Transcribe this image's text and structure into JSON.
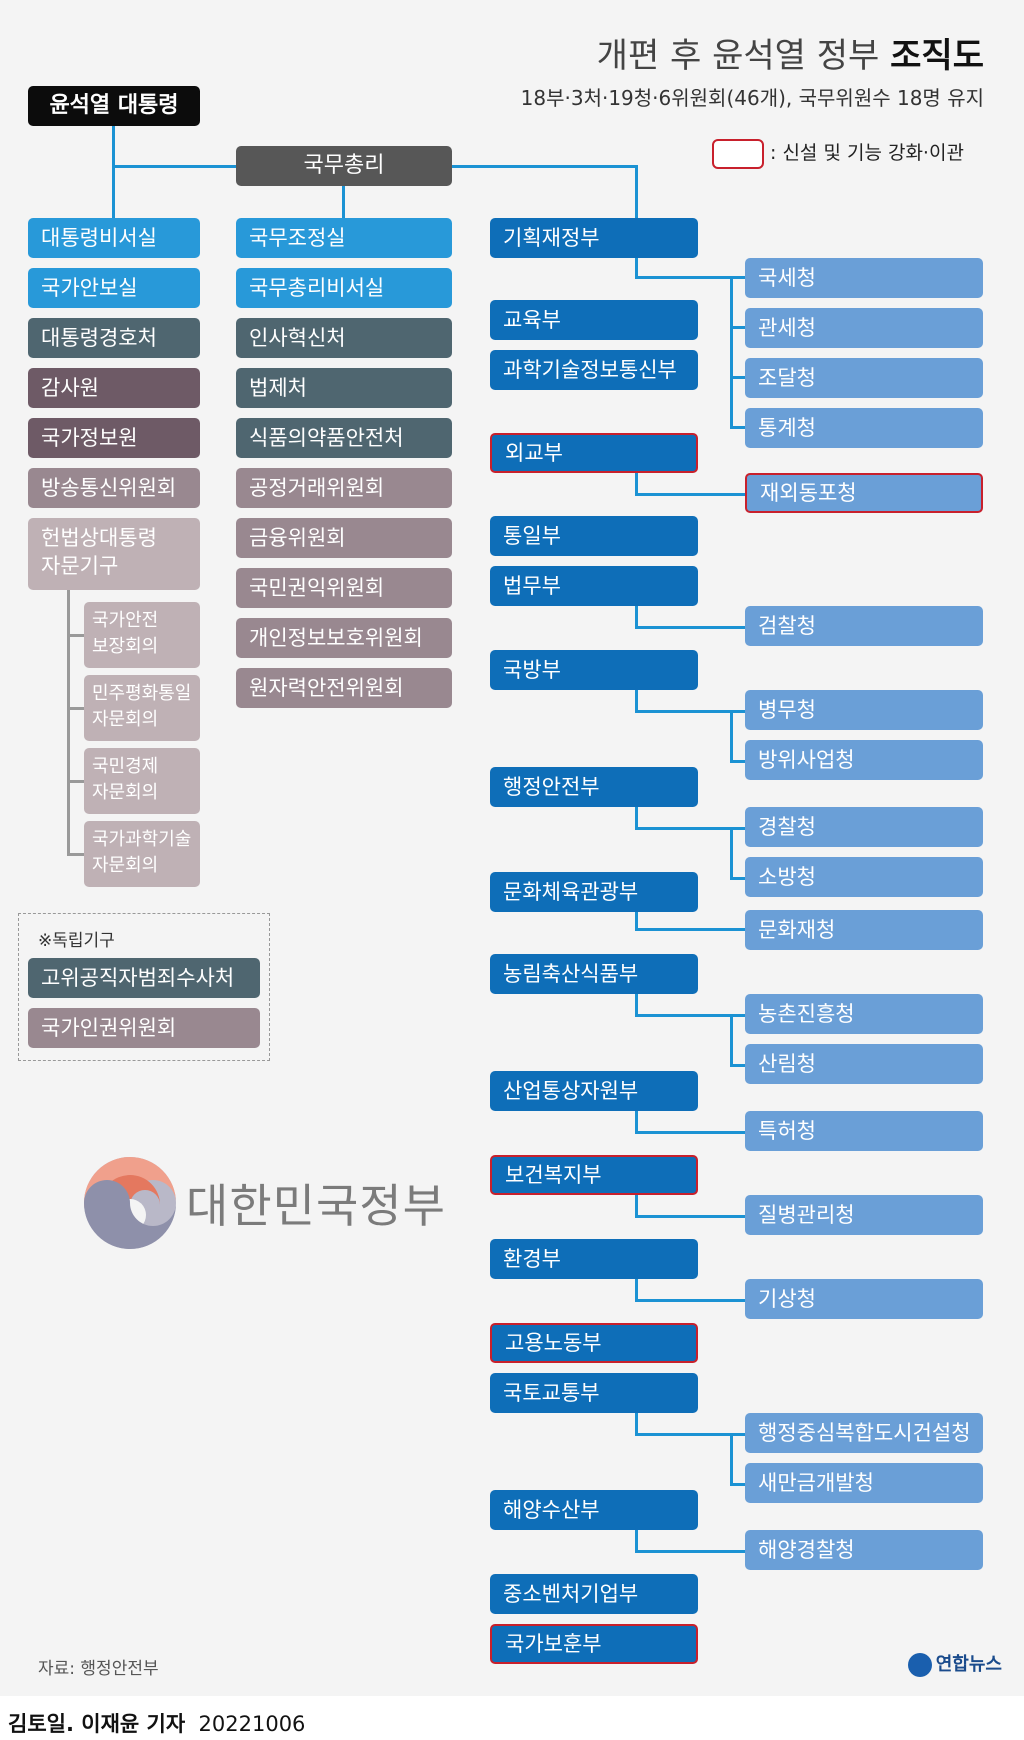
{
  "header": {
    "title_regular": "개편 후 윤석열 정부 ",
    "title_bold": "조직도",
    "subtitle": "18부·3처·19청·6위원회(46개), 국무위원수 18명 유지"
  },
  "legend": {
    "label": ": 신설 및 기능 강화·이관",
    "border_color": "#c8202c"
  },
  "top": {
    "president": "윤석열 대통령",
    "prime_minister": "국무총리"
  },
  "president_col": {
    "items": [
      "대통령비서실",
      "국가안보실",
      "대통령경호처",
      "감사원",
      "국가정보원",
      "방송통신위원회",
      "헌법상대통령\n자문기구"
    ],
    "advisory": [
      "국가안전\n보장회의",
      "민주평화통일\n자문회의",
      "국민경제\n자문회의",
      "국가과학기술\n자문회의"
    ]
  },
  "pm_col": {
    "items": [
      "국무조정실",
      "국무총리비서실",
      "인사혁신처",
      "법제처",
      "식품의약품안전처",
      "공정거래위원회",
      "금융위원회",
      "국민권익위원회",
      "개인정보보호위원회",
      "원자력안전위원회"
    ]
  },
  "ministries": [
    {
      "name": "기획재정부",
      "new": false
    },
    {
      "name": "교육부",
      "new": false
    },
    {
      "name": "과학기술정보통신부",
      "new": false
    },
    {
      "name": "외교부",
      "new": true
    },
    {
      "name": "통일부",
      "new": false
    },
    {
      "name": "법무부",
      "new": false
    },
    {
      "name": "국방부",
      "new": false
    },
    {
      "name": "행정안전부",
      "new": false
    },
    {
      "name": "문화체육관광부",
      "new": false
    },
    {
      "name": "농림축산식품부",
      "new": false
    },
    {
      "name": "산업통상자원부",
      "new": false
    },
    {
      "name": "보건복지부",
      "new": true
    },
    {
      "name": "환경부",
      "new": false
    },
    {
      "name": "고용노동부",
      "new": true
    },
    {
      "name": "국토교통부",
      "new": false
    },
    {
      "name": "해양수산부",
      "new": false
    },
    {
      "name": "중소벤처기업부",
      "new": false
    },
    {
      "name": "국가보훈부",
      "new": true
    }
  ],
  "agencies": [
    {
      "name": "국세청",
      "new": false
    },
    {
      "name": "관세청",
      "new": false
    },
    {
      "name": "조달청",
      "new": false
    },
    {
      "name": "통계청",
      "new": false
    },
    {
      "name": "재외동포청",
      "new": true
    },
    {
      "name": "검찰청",
      "new": false
    },
    {
      "name": "병무청",
      "new": false
    },
    {
      "name": "방위사업청",
      "new": false
    },
    {
      "name": "경찰청",
      "new": false
    },
    {
      "name": "소방청",
      "new": false
    },
    {
      "name": "문화재청",
      "new": false
    },
    {
      "name": "농촌진흥청",
      "new": false
    },
    {
      "name": "산림청",
      "new": false
    },
    {
      "name": "특허청",
      "new": false
    },
    {
      "name": "질병관리청",
      "new": false
    },
    {
      "name": "기상청",
      "new": false
    },
    {
      "name": "행정중심복합도시건설청",
      "new": false
    },
    {
      "name": "새만금개발청",
      "new": false
    },
    {
      "name": "해양경찰청",
      "new": false
    }
  ],
  "independent": {
    "note": "※독립기구",
    "items": [
      "고위공직자범죄수사처",
      "국가인권위원회"
    ]
  },
  "logo": {
    "text": "대한민국정부"
  },
  "footer": {
    "source": "자료: 행정안전부",
    "brand": "연합뉴스",
    "credit_name": "김토일. 이재윤 기자",
    "credit_date": "20221006"
  }
}
